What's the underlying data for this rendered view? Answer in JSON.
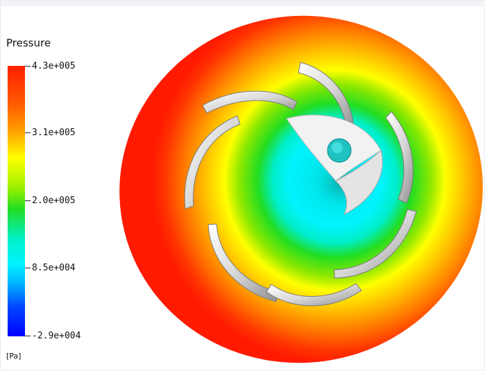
{
  "legend": {
    "title": "Pressure",
    "unit": "[Pa]",
    "ticks": [
      "4.3e+005",
      "3.1e+005",
      "2.0e+005",
      "8.5e+004",
      "-2.9e+004"
    ]
  },
  "colors": {
    "high": "#ff2a00",
    "mid_high": "#ffff00",
    "mid": "#22dd22",
    "mid_low": "#00f0ff",
    "low": "#0000ff",
    "blade": "#d8d8d8"
  },
  "visualization": {
    "icon": "impeller-pressure-contour"
  }
}
